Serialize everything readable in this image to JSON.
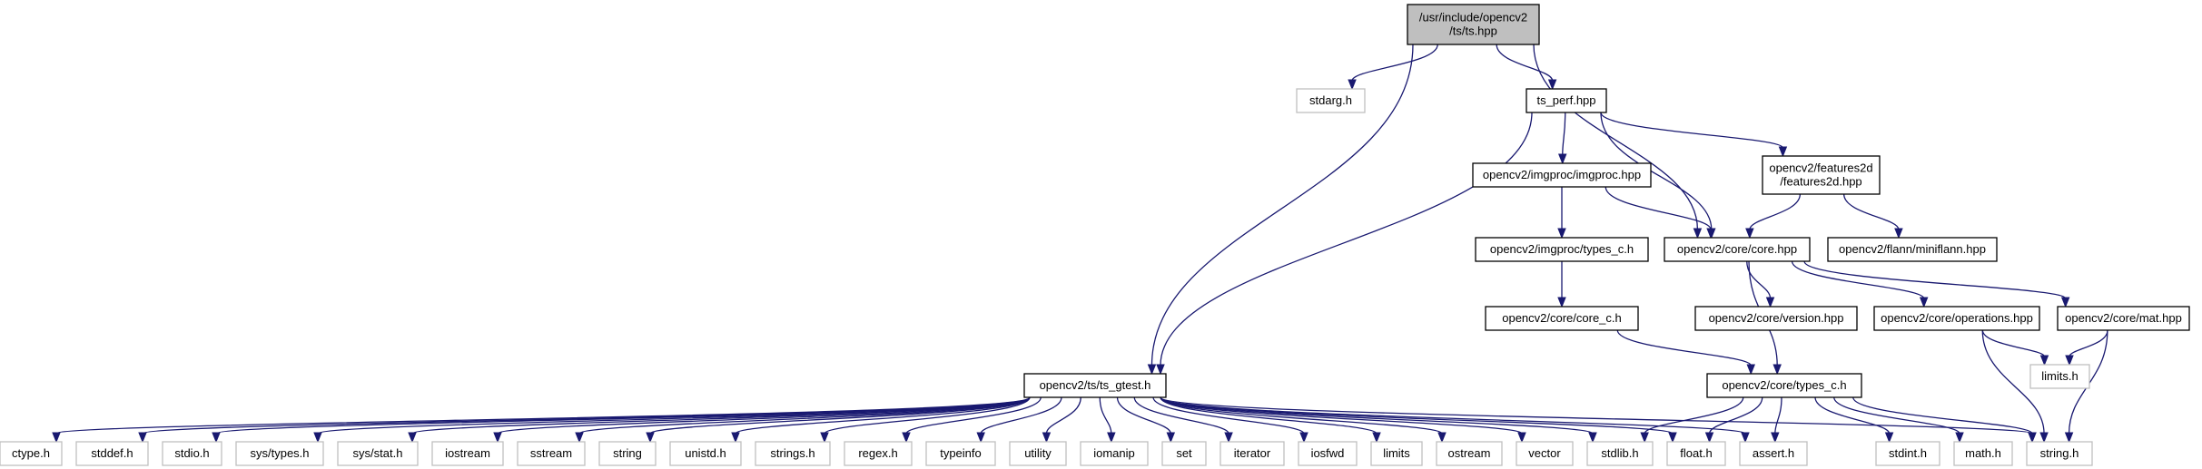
{
  "graph": {
    "nodes": [
      {
        "id": "ts_hpp",
        "lines": [
          "/usr/include/opencv2",
          "/ts/ts.hpp"
        ],
        "kind": "root"
      },
      {
        "id": "stdarg_h",
        "lines": [
          "stdarg.h"
        ],
        "kind": "leaf"
      },
      {
        "id": "ts_perf_hpp",
        "lines": [
          "ts_perf.hpp"
        ],
        "kind": "file"
      },
      {
        "id": "imgproc_hpp",
        "lines": [
          "opencv2/imgproc/imgproc.hpp"
        ],
        "kind": "file"
      },
      {
        "id": "features2d_hpp",
        "lines": [
          "opencv2/features2d",
          "/features2d.hpp"
        ],
        "kind": "file"
      },
      {
        "id": "imgproc_types_c_h",
        "lines": [
          "opencv2/imgproc/types_c.h"
        ],
        "kind": "file"
      },
      {
        "id": "core_hpp",
        "lines": [
          "opencv2/core/core.hpp"
        ],
        "kind": "file"
      },
      {
        "id": "miniflann_hpp",
        "lines": [
          "opencv2/flann/miniflann.hpp"
        ],
        "kind": "file"
      },
      {
        "id": "core_c_h",
        "lines": [
          "opencv2/core/core_c.h"
        ],
        "kind": "file"
      },
      {
        "id": "version_hpp",
        "lines": [
          "opencv2/core/version.hpp"
        ],
        "kind": "file"
      },
      {
        "id": "operations_hpp",
        "lines": [
          "opencv2/core/operations.hpp"
        ],
        "kind": "file"
      },
      {
        "id": "mat_hpp",
        "lines": [
          "opencv2/core/mat.hpp"
        ],
        "kind": "file"
      },
      {
        "id": "limits_h",
        "lines": [
          "limits.h"
        ],
        "kind": "leaf"
      },
      {
        "id": "ts_gtest_h",
        "lines": [
          "opencv2/ts/ts_gtest.h"
        ],
        "kind": "file"
      },
      {
        "id": "core_types_c_h",
        "lines": [
          "opencv2/core/types_c.h"
        ],
        "kind": "file"
      },
      {
        "id": "ctype_h",
        "lines": [
          "ctype.h"
        ],
        "kind": "leaf"
      },
      {
        "id": "stddef_h",
        "lines": [
          "stddef.h"
        ],
        "kind": "leaf"
      },
      {
        "id": "stdio_h",
        "lines": [
          "stdio.h"
        ],
        "kind": "leaf"
      },
      {
        "id": "sys_types_h",
        "lines": [
          "sys/types.h"
        ],
        "kind": "leaf"
      },
      {
        "id": "sys_stat_h",
        "lines": [
          "sys/stat.h"
        ],
        "kind": "leaf"
      },
      {
        "id": "iostream",
        "lines": [
          "iostream"
        ],
        "kind": "leaf"
      },
      {
        "id": "sstream",
        "lines": [
          "sstream"
        ],
        "kind": "leaf"
      },
      {
        "id": "string",
        "lines": [
          "string"
        ],
        "kind": "leaf"
      },
      {
        "id": "unistd_h",
        "lines": [
          "unistd.h"
        ],
        "kind": "leaf"
      },
      {
        "id": "strings_h",
        "lines": [
          "strings.h"
        ],
        "kind": "leaf"
      },
      {
        "id": "regex_h",
        "lines": [
          "regex.h"
        ],
        "kind": "leaf"
      },
      {
        "id": "typeinfo",
        "lines": [
          "typeinfo"
        ],
        "kind": "leaf"
      },
      {
        "id": "utility",
        "lines": [
          "utility"
        ],
        "kind": "leaf"
      },
      {
        "id": "iomanip",
        "lines": [
          "iomanip"
        ],
        "kind": "leaf"
      },
      {
        "id": "set",
        "lines": [
          "set"
        ],
        "kind": "leaf"
      },
      {
        "id": "iterator",
        "lines": [
          "iterator"
        ],
        "kind": "leaf"
      },
      {
        "id": "iosfwd",
        "lines": [
          "iosfwd"
        ],
        "kind": "leaf"
      },
      {
        "id": "limits",
        "lines": [
          "limits"
        ],
        "kind": "leaf"
      },
      {
        "id": "ostream",
        "lines": [
          "ostream"
        ],
        "kind": "leaf"
      },
      {
        "id": "vector",
        "lines": [
          "vector"
        ],
        "kind": "leaf"
      },
      {
        "id": "stdlib_h",
        "lines": [
          "stdlib.h"
        ],
        "kind": "leaf"
      },
      {
        "id": "float_h",
        "lines": [
          "float.h"
        ],
        "kind": "leaf"
      },
      {
        "id": "assert_h",
        "lines": [
          "assert.h"
        ],
        "kind": "leaf"
      },
      {
        "id": "stdint_h",
        "lines": [
          "stdint.h"
        ],
        "kind": "leaf"
      },
      {
        "id": "math_h",
        "lines": [
          "math.h"
        ],
        "kind": "leaf"
      },
      {
        "id": "string_h",
        "lines": [
          "string.h"
        ],
        "kind": "leaf"
      }
    ],
    "edges": [
      [
        "ts_hpp",
        "stdarg_h"
      ],
      [
        "ts_hpp",
        "ts_perf_hpp"
      ],
      [
        "ts_hpp",
        "core_hpp"
      ],
      [
        "ts_hpp",
        "ts_gtest_h"
      ],
      [
        "ts_perf_hpp",
        "imgproc_hpp"
      ],
      [
        "ts_perf_hpp",
        "features2d_hpp"
      ],
      [
        "ts_perf_hpp",
        "core_hpp"
      ],
      [
        "ts_perf_hpp",
        "ts_gtest_h"
      ],
      [
        "imgproc_hpp",
        "imgproc_types_c_h"
      ],
      [
        "imgproc_hpp",
        "core_hpp"
      ],
      [
        "features2d_hpp",
        "core_hpp"
      ],
      [
        "features2d_hpp",
        "miniflann_hpp"
      ],
      [
        "imgproc_types_c_h",
        "core_c_h"
      ],
      [
        "core_c_h",
        "core_types_c_h"
      ],
      [
        "core_hpp",
        "version_hpp"
      ],
      [
        "core_hpp",
        "operations_hpp"
      ],
      [
        "core_hpp",
        "mat_hpp"
      ],
      [
        "core_hpp",
        "core_types_c_h"
      ],
      [
        "operations_hpp",
        "limits_h"
      ],
      [
        "operations_hpp",
        "string_h"
      ],
      [
        "mat_hpp",
        "limits_h"
      ],
      [
        "mat_hpp",
        "string_h"
      ],
      [
        "core_types_c_h",
        "stdlib_h"
      ],
      [
        "core_types_c_h",
        "float_h"
      ],
      [
        "core_types_c_h",
        "assert_h"
      ],
      [
        "core_types_c_h",
        "stdint_h"
      ],
      [
        "core_types_c_h",
        "math_h"
      ],
      [
        "core_types_c_h",
        "string_h"
      ],
      [
        "ts_gtest_h",
        "ctype_h"
      ],
      [
        "ts_gtest_h",
        "stddef_h"
      ],
      [
        "ts_gtest_h",
        "stdio_h"
      ],
      [
        "ts_gtest_h",
        "sys_types_h"
      ],
      [
        "ts_gtest_h",
        "sys_stat_h"
      ],
      [
        "ts_gtest_h",
        "iostream"
      ],
      [
        "ts_gtest_h",
        "sstream"
      ],
      [
        "ts_gtest_h",
        "string"
      ],
      [
        "ts_gtest_h",
        "unistd_h"
      ],
      [
        "ts_gtest_h",
        "strings_h"
      ],
      [
        "ts_gtest_h",
        "regex_h"
      ],
      [
        "ts_gtest_h",
        "typeinfo"
      ],
      [
        "ts_gtest_h",
        "utility"
      ],
      [
        "ts_gtest_h",
        "iomanip"
      ],
      [
        "ts_gtest_h",
        "set"
      ],
      [
        "ts_gtest_h",
        "iterator"
      ],
      [
        "ts_gtest_h",
        "iosfwd"
      ],
      [
        "ts_gtest_h",
        "limits"
      ],
      [
        "ts_gtest_h",
        "ostream"
      ],
      [
        "ts_gtest_h",
        "vector"
      ],
      [
        "ts_gtest_h",
        "stdlib_h"
      ],
      [
        "ts_gtest_h",
        "float_h"
      ],
      [
        "ts_gtest_h",
        "assert_h"
      ],
      [
        "ts_gtest_h",
        "string_h"
      ]
    ]
  }
}
